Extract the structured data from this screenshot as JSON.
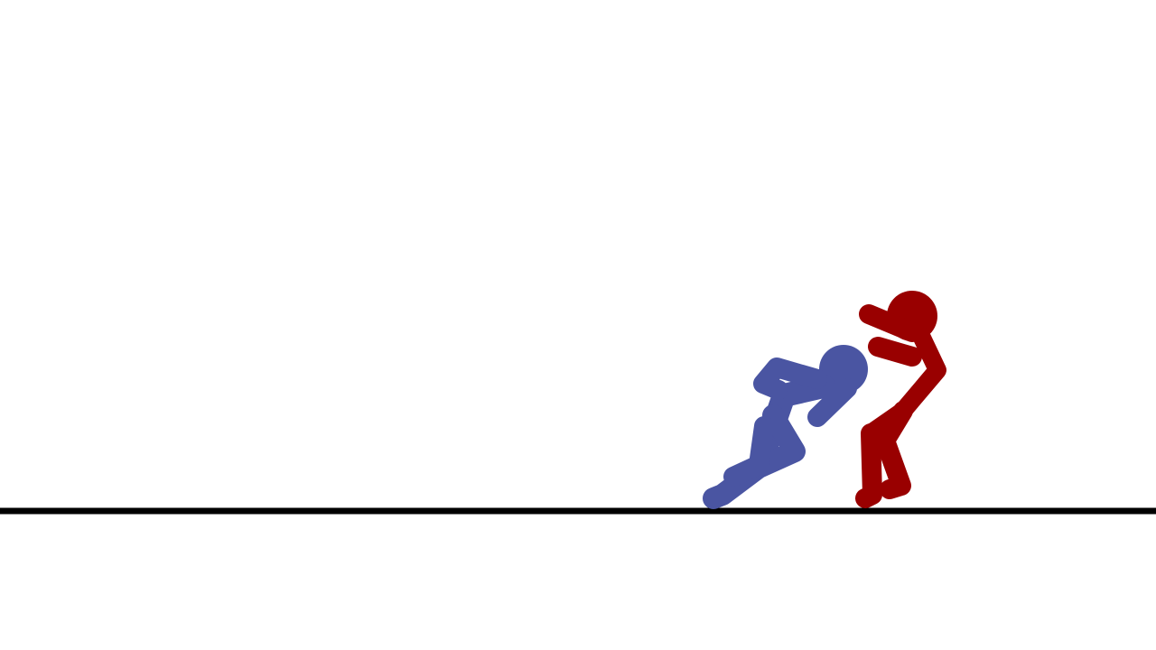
{
  "scene": {
    "background_color": "#ffffff",
    "ground_color": "#000000",
    "fighters": [
      {
        "id": "blue",
        "color": "#4a55a2",
        "pose": "crouching-charge"
      },
      {
        "id": "red",
        "color": "#990000",
        "pose": "standing-guard"
      }
    ]
  }
}
